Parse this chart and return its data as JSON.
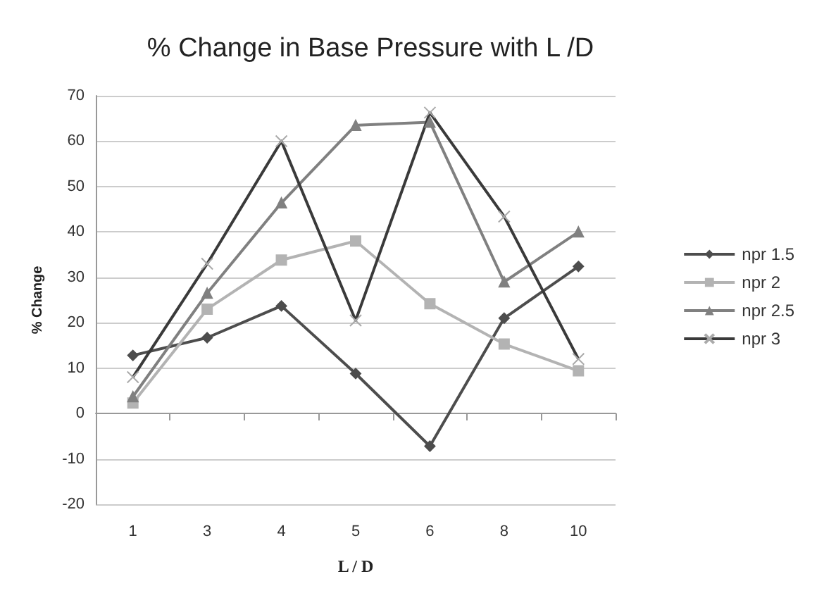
{
  "chart_data": {
    "type": "line",
    "title": "% Change in Base Pressure with L /D",
    "xlabel": "L / D",
    "ylabel": "% Change",
    "categories": [
      "1",
      "3",
      "4",
      "5",
      "6",
      "8",
      "10"
    ],
    "series": [
      {
        "name": "npr 1.5",
        "color": "#4d4d4d",
        "marker": "diamond",
        "values": [
          12.8,
          16.7,
          23.7,
          8.8,
          -7.2,
          21,
          32.4
        ]
      },
      {
        "name": "npr 2",
        "color": "#b3b3b3",
        "marker": "square",
        "values": [
          2.3,
          23,
          33.8,
          38,
          24.2,
          15.3,
          9.4
        ]
      },
      {
        "name": "npr 2.5",
        "color": "#808080",
        "marker": "triangle",
        "values": [
          3.7,
          26.5,
          46.4,
          63.5,
          64.2,
          29,
          40
        ]
      },
      {
        "name": "npr 3",
        "color": "#3a3a3a",
        "marker": "cross",
        "values": [
          8,
          33,
          60,
          20.5,
          66.3,
          43.4,
          12
        ]
      }
    ],
    "ylim": [
      -20,
      70
    ],
    "yticks": [
      -20,
      -10,
      0,
      10,
      20,
      30,
      40,
      50,
      60,
      70
    ],
    "grid": "y",
    "legend": "right"
  }
}
